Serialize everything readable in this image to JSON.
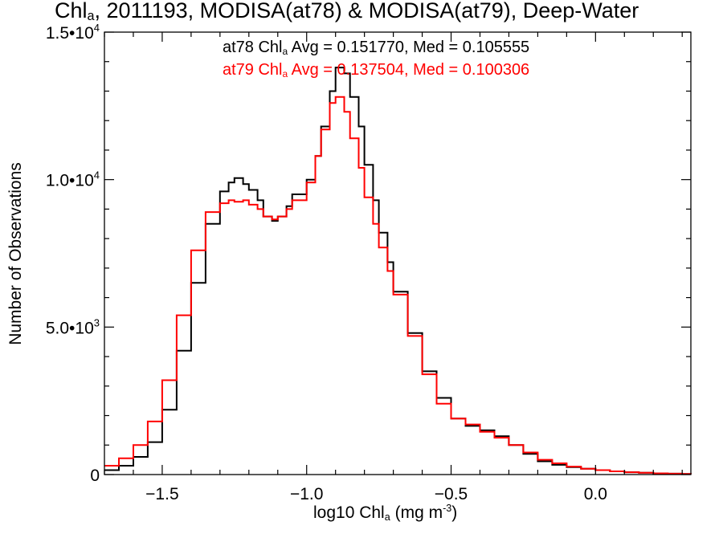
{
  "chart_data": {
    "type": "line",
    "title": {
      "pre": "Chl",
      "sub": "a",
      "post": ", 2011193, MODISA(at78) & MODISA(at79), Deep-Water"
    },
    "xlabel": {
      "pre": "log10 Chl",
      "sub": "a",
      "mid": " (mg m",
      "sup": "-3",
      "post": ")"
    },
    "ylabel": "Number of Observations",
    "xlim": [
      -1.7,
      0.33
    ],
    "ylim": [
      0,
      15000
    ],
    "x_ticks": [
      {
        "value": -1.5,
        "label": "−1.5"
      },
      {
        "value": -1.0,
        "label": "−1.0"
      },
      {
        "value": -0.5,
        "label": "−0.5"
      },
      {
        "value": 0.0,
        "label": "0.0"
      }
    ],
    "y_ticks": [
      {
        "value": 0,
        "label": "0"
      },
      {
        "value": 5000,
        "label": "5.0•10",
        "exp": "3"
      },
      {
        "value": 10000,
        "label": "1.0•10",
        "exp": "4"
      },
      {
        "value": 15000,
        "label": "1.5•10",
        "exp": "4"
      }
    ],
    "grid": false,
    "step": true,
    "legend": [
      {
        "pre": "at78 Chl",
        "sub": "a",
        "post": " Avg = 0.151770, Med = 0.105555",
        "color": "#000000"
      },
      {
        "pre": "at79 Chl",
        "sub": "a",
        "post": " Avg = 0.137504, Med = 0.100306",
        "color": "#ff0000"
      }
    ],
    "series": [
      {
        "name": "at78",
        "color": "#000000",
        "x": [
          -1.7,
          -1.65,
          -1.6,
          -1.55,
          -1.5,
          -1.45,
          -1.4,
          -1.35,
          -1.3,
          -1.27,
          -1.25,
          -1.22,
          -1.2,
          -1.17,
          -1.15,
          -1.12,
          -1.1,
          -1.07,
          -1.05,
          -1.0,
          -0.97,
          -0.95,
          -0.92,
          -0.9,
          -0.87,
          -0.85,
          -0.82,
          -0.8,
          -0.77,
          -0.75,
          -0.72,
          -0.7,
          -0.65,
          -0.6,
          -0.55,
          -0.5,
          -0.45,
          -0.4,
          -0.35,
          -0.3,
          -0.25,
          -0.2,
          -0.15,
          -0.1,
          -0.05,
          0.0,
          0.05,
          0.1,
          0.15,
          0.2,
          0.25,
          0.3,
          0.33
        ],
        "y": [
          150,
          300,
          600,
          1100,
          2200,
          4200,
          6500,
          8500,
          9600,
          9900,
          10050,
          9850,
          9650,
          9300,
          8750,
          8600,
          8750,
          9100,
          9500,
          10000,
          10800,
          11800,
          13000,
          13800,
          13600,
          12800,
          11800,
          10500,
          9300,
          8200,
          7200,
          6200,
          4800,
          3500,
          2600,
          1900,
          1650,
          1500,
          1300,
          1000,
          700,
          450,
          330,
          250,
          200,
          150,
          110,
          80,
          60,
          40,
          30,
          20,
          15
        ]
      },
      {
        "name": "at79",
        "color": "#ff0000",
        "x": [
          -1.7,
          -1.65,
          -1.6,
          -1.55,
          -1.5,
          -1.45,
          -1.4,
          -1.35,
          -1.3,
          -1.27,
          -1.25,
          -1.22,
          -1.2,
          -1.17,
          -1.15,
          -1.12,
          -1.1,
          -1.07,
          -1.05,
          -1.0,
          -0.97,
          -0.95,
          -0.92,
          -0.9,
          -0.87,
          -0.85,
          -0.82,
          -0.8,
          -0.77,
          -0.75,
          -0.72,
          -0.7,
          -0.65,
          -0.6,
          -0.55,
          -0.5,
          -0.45,
          -0.4,
          -0.35,
          -0.3,
          -0.25,
          -0.2,
          -0.15,
          -0.1,
          -0.05,
          0.0,
          0.05,
          0.1,
          0.15,
          0.2,
          0.25,
          0.3,
          0.33
        ],
        "y": [
          300,
          550,
          1000,
          1800,
          3200,
          5400,
          7600,
          8900,
          9200,
          9300,
          9250,
          9300,
          9150,
          9000,
          8750,
          8650,
          8750,
          9000,
          9300,
          9900,
          10800,
          11700,
          12600,
          12800,
          12300,
          11400,
          10400,
          9400,
          8500,
          7700,
          6900,
          6100,
          4700,
          3400,
          2400,
          1900,
          1700,
          1450,
          1250,
          1000,
          750,
          500,
          380,
          270,
          200,
          150,
          110,
          80,
          60,
          40,
          30,
          20,
          15
        ]
      }
    ]
  }
}
